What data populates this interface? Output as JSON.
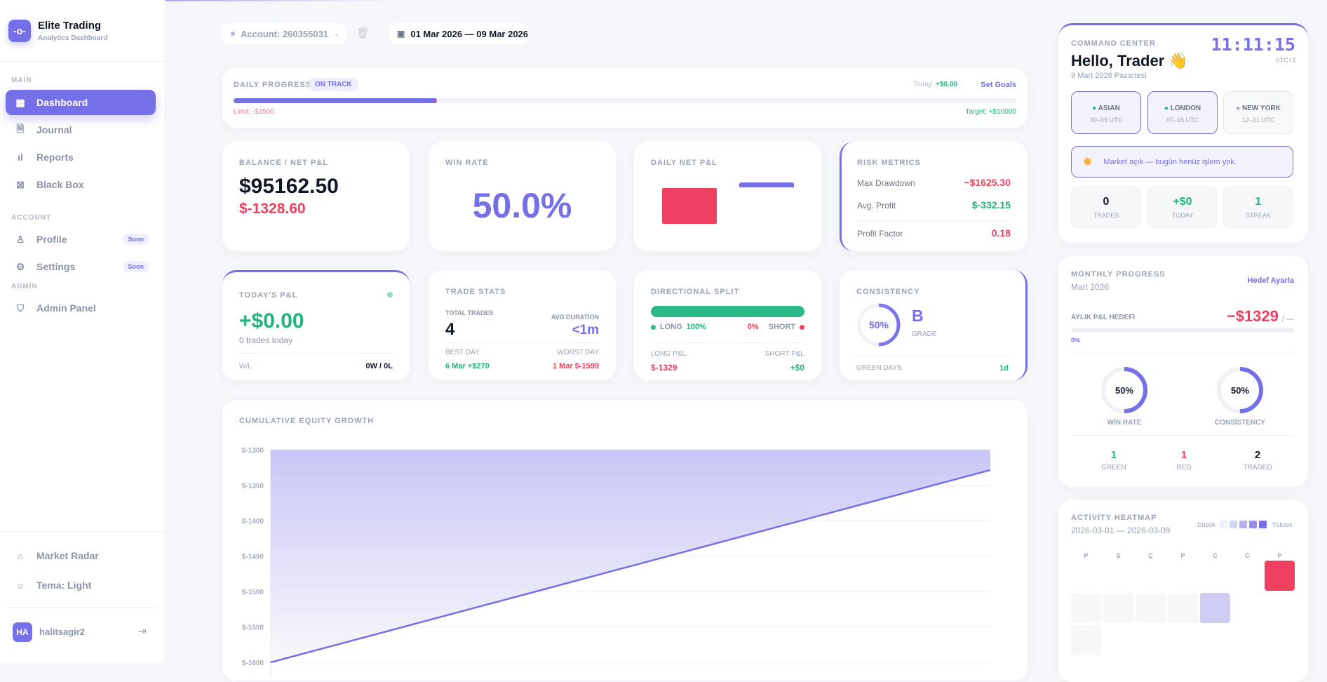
{
  "colors": {
    "accent": "#7670e8",
    "green": "#22b47c",
    "red": "#ef4060"
  },
  "sidebar": {
    "app_title": "Elite Trading",
    "app_subtitle": "Analytics Dashboard",
    "sections": {
      "main": "MAİN",
      "account": "ACCOUNT",
      "admin": "ADMİN"
    },
    "items": [
      {
        "label": "Dashboard",
        "icon": "grid-icon",
        "active": true
      },
      {
        "label": "Journal",
        "icon": "document-icon"
      },
      {
        "label": "Reports",
        "icon": "bar-chart-icon"
      },
      {
        "label": "Black Box",
        "icon": "box-x-icon"
      },
      {
        "label": "Profile",
        "icon": "user-icon",
        "badge": "Soon"
      },
      {
        "label": "Settings",
        "icon": "gear-icon",
        "badge": "Soon"
      },
      {
        "label": "Admin Panel",
        "icon": "shield-icon"
      }
    ],
    "bottom": [
      {
        "label": "Market Radar",
        "icon": "radar-icon"
      },
      {
        "label": "Tema: Light",
        "icon": "sun-icon"
      }
    ],
    "user": {
      "initials": "HA",
      "name": "halitsagir2"
    }
  },
  "topbar": {
    "account": "Account: 260355031",
    "date_range": "01 Mar 2026 — 09 Mar 2026"
  },
  "daily_progress": {
    "title": "DAILY PROGRESS",
    "status": "ON TRACK",
    "today_label": "Today:",
    "today_value": "+$0.00",
    "set_goals": "Set Goals",
    "limit": "Limit: -$3500",
    "target": "Target: +$10000",
    "progress_percent": 26
  },
  "balance": {
    "title": "BALANCE / NET P&L",
    "balance": "$95162.50",
    "net": "$-1328.60"
  },
  "win_rate": {
    "title": "WIN RATE",
    "value": "50.0%"
  },
  "daily_net": {
    "title": "DAILY NET P&L"
  },
  "risk": {
    "title": "RISK METRICS",
    "rows": [
      {
        "label": "Max Drawdown",
        "value": "−$1625.30",
        "color": "red"
      },
      {
        "label": "Avg. Profit",
        "value": "$-332.15",
        "color": "green"
      },
      {
        "label": "Profit Factor",
        "value": "0.18",
        "color": "red"
      }
    ]
  },
  "today": {
    "title": "TODAY'S P&L",
    "value": "+$0.00",
    "sub": "0 trades today",
    "wl_label": "W/L",
    "wl_value": "0W / 0L"
  },
  "trade_stats": {
    "title": "TRADE STATS",
    "total_label": "TOTAL TRADES",
    "total": "4",
    "avg_label": "AVG DURATİON",
    "avg": "<1m",
    "best_label": "BEST DAY",
    "best": "6 Mar +$270",
    "worst_label": "WORST DAY",
    "worst": "1 Mar $-1599"
  },
  "directional": {
    "title": "DIRECTIONAL SPLIT",
    "long_label": "LONG",
    "long_pct": "100%",
    "short_pct": "0%",
    "short_label": "SHORT",
    "long_pnl_label": "LONG P&L",
    "long_pnl": "$-1329",
    "short_pnl_label": "SHORT P&L",
    "short_pnl": "+$0",
    "long_fraction": 100
  },
  "consistency": {
    "title": "CONSISTENCY",
    "pct": "50%",
    "pct_value": 50,
    "grade": "B",
    "grade_label": "GRADE",
    "green_days_label": "GREEN DAYS",
    "green_days": "1d"
  },
  "chart_data": {
    "type": "area",
    "title": "CUMULATIVE EQUITY GROWTH",
    "ylim": [
      -1600,
      -1300
    ],
    "yticks": [
      "$-1300",
      "$-1350",
      "$-1400",
      "$-1450",
      "$-1500",
      "$-1550",
      "$-1600"
    ],
    "ytick_values": [
      -1300,
      -1350,
      -1400,
      -1450,
      -1500,
      -1550,
      -1600
    ],
    "values": [
      -1600,
      -1328.6
    ],
    "grid": true,
    "color": "#7670e8"
  },
  "command": {
    "title": "COMMAND CENTER",
    "greeting": "Hello, Trader 👋",
    "date": "9 Mart 2026 Pazartesi",
    "clock": "11:11:15",
    "tz": "UTC+3",
    "sessions": [
      {
        "name": "ASIAN",
        "hours": "00–09 UTC",
        "active": true
      },
      {
        "name": "LONDON",
        "hours": "07–16 UTC",
        "active": true
      },
      {
        "name": "NEW YORK",
        "hours": "12–21 UTC",
        "active": false
      }
    ],
    "banner": "Market açık — bugün henüz işlem yok.",
    "stats": [
      {
        "value": "0",
        "label": "TRADES",
        "color": "dark"
      },
      {
        "value": "+$0",
        "label": "TODAY",
        "color": "green"
      },
      {
        "value": "1",
        "label": "STREAK",
        "color": "green"
      }
    ]
  },
  "monthly": {
    "title": "MONTHLY PROGRESS",
    "month": "Mart 2026",
    "set_target": "Hedef Ayarla",
    "goal_label": "AYLIK P&L HEDEFİ",
    "goal_value": "−$1329",
    "goal_suffix": "/ —",
    "goal_pct": "0%",
    "rings": [
      {
        "pct": "50%",
        "value": 50,
        "label": "WİN RATE"
      },
      {
        "pct": "50%",
        "value": 50,
        "label": "CONSİSTENCY"
      }
    ],
    "counts": [
      {
        "value": "1",
        "label": "GREEN",
        "color": "green"
      },
      {
        "value": "1",
        "label": "RED",
        "color": "red"
      },
      {
        "value": "2",
        "label": "TRADED",
        "color": "dark"
      }
    ]
  },
  "heatmap": {
    "title": "ACTİVİTY HEATMAP",
    "range": "2026-03-01 — 2026-03-09",
    "low": "Düşük",
    "high": "Yüksek",
    "days": [
      "P",
      "S",
      "Ç",
      "P",
      "C",
      "C",
      "P"
    ],
    "cells": [
      {
        "date": "2026-03-01",
        "row": 0,
        "col": 6,
        "status": "loss"
      },
      {
        "date": "2026-03-02",
        "row": 1,
        "col": 0,
        "status": "none"
      },
      {
        "date": "2026-03-03",
        "row": 1,
        "col": 1,
        "status": "none"
      },
      {
        "date": "2026-03-04",
        "row": 1,
        "col": 2,
        "status": "none"
      },
      {
        "date": "2026-03-05",
        "row": 1,
        "col": 3,
        "status": "none"
      },
      {
        "date": "2026-03-06",
        "row": 1,
        "col": 4,
        "status": "low"
      },
      {
        "date": "2026-03-09",
        "row": 2,
        "col": 0,
        "status": "none"
      }
    ]
  }
}
